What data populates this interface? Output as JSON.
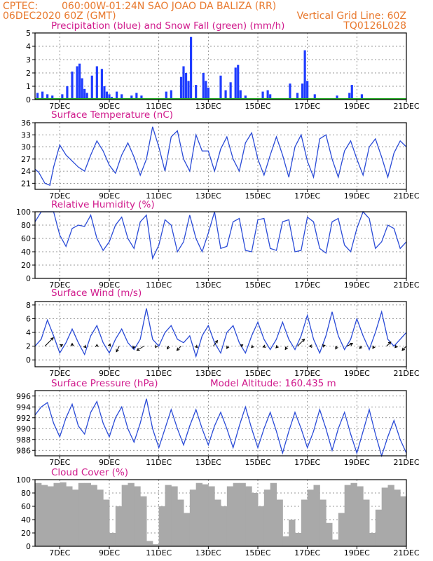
{
  "header": {
    "center": "CPTEC:",
    "location": "060:00W-01:24N  SAO JOAO DA BALIZA (RR)",
    "run": "06DEC2020 60Z (GMT)",
    "grid_note": "Vertical Grid Line: 60Z",
    "model": "TQ0126L028"
  },
  "x_axis": {
    "ticks": [
      "7DEC",
      "9DEC",
      "11DEC",
      "13DEC",
      "15DEC",
      "17DEC",
      "19DEC",
      "21DEC"
    ],
    "tick_days": [
      1,
      3,
      5,
      7,
      9,
      11,
      13,
      15
    ],
    "range_days": [
      0,
      15
    ]
  },
  "colors": {
    "precip": "#1f3cff",
    "snow": "#22aa22",
    "line": "#2a4bd7",
    "cloud": "#a9a9a9",
    "title": "#d01a8c",
    "header": "#e8792e"
  },
  "chart_data": [
    {
      "type": "bar",
      "title": "Precipitation (blue) and Snow Fall (green) (mm/h)",
      "ylim": [
        0,
        5
      ],
      "yticks": [
        "0",
        "1",
        "2",
        "3",
        "4",
        "5"
      ],
      "x_days": [
        0.1,
        0.3,
        0.5,
        0.7,
        1.1,
        1.3,
        1.5,
        1.7,
        1.8,
        1.9,
        2.0,
        2.1,
        2.3,
        2.5,
        2.7,
        2.8,
        2.9,
        3.0,
        3.1,
        3.3,
        3.5,
        3.9,
        4.1,
        4.3,
        5.3,
        5.5,
        5.9,
        6.0,
        6.1,
        6.2,
        6.3,
        6.5,
        6.8,
        6.9,
        7.0,
        7.5,
        7.7,
        7.9,
        8.1,
        8.2,
        8.3,
        8.5,
        9.2,
        9.4,
        9.5,
        10.3,
        10.6,
        10.8,
        10.9,
        11.0,
        11.3,
        12.2,
        12.7,
        12.8,
        13.2
      ],
      "values": [
        0.5,
        0.6,
        0.4,
        0.3,
        0.4,
        1.0,
        2.1,
        2.5,
        2.7,
        1.6,
        0.8,
        0.5,
        1.8,
        2.5,
        2.3,
        1.0,
        0.6,
        0.4,
        0.2,
        0.6,
        0.4,
        0.3,
        0.5,
        0.3,
        0.6,
        0.7,
        1.7,
        2.5,
        2.0,
        1.4,
        4.7,
        1.1,
        2.0,
        1.4,
        0.9,
        1.8,
        0.7,
        1.3,
        2.4,
        2.6,
        0.7,
        0.3,
        0.6,
        0.7,
        0.4,
        1.2,
        0.5,
        1.2,
        3.7,
        1.4,
        0.4,
        0.3,
        0.5,
        1.1,
        0.4
      ],
      "snow_values": [
        0,
        0,
        0,
        0,
        0,
        0,
        0,
        0,
        0,
        0,
        0,
        0,
        0,
        0,
        0,
        0,
        0,
        0,
        0,
        0,
        0,
        0,
        0,
        0,
        0,
        0,
        0,
        0,
        0,
        0,
        0,
        0,
        0,
        0,
        0,
        0,
        0,
        0,
        0,
        0,
        0,
        0,
        0,
        0,
        0,
        0,
        0,
        0,
        0,
        0,
        0,
        0,
        0,
        0,
        0
      ]
    },
    {
      "type": "line",
      "title": "Surface Temperature (nC)",
      "ylim": [
        19.5,
        36
      ],
      "yticks": [
        "21",
        "24",
        "27",
        "30",
        "33",
        "36"
      ],
      "ytick_values": [
        21,
        24,
        27,
        30,
        33,
        36
      ],
      "x_days": [
        0.0,
        0.15,
        0.4,
        0.6,
        0.75,
        1.0,
        1.25,
        1.5,
        1.75,
        2.0,
        2.25,
        2.5,
        2.75,
        3.0,
        3.25,
        3.5,
        3.75,
        4.0,
        4.25,
        4.5,
        4.75,
        5.0,
        5.25,
        5.5,
        5.75,
        6.0,
        6.25,
        6.5,
        6.75,
        7.0,
        7.25,
        7.5,
        7.75,
        8.0,
        8.25,
        8.5,
        8.75,
        9.0,
        9.25,
        9.5,
        9.75,
        10.0,
        10.25,
        10.5,
        10.75,
        11.0,
        11.25,
        11.5,
        11.75,
        12.0,
        12.25,
        12.5,
        12.75,
        13.0,
        13.25,
        13.5,
        13.75,
        14.0,
        14.25,
        14.5,
        14.75,
        15.0
      ],
      "values": [
        24.5,
        23.7,
        21.0,
        20.5,
        25.0,
        30.5,
        28.0,
        26.5,
        25.0,
        24.0,
        28.0,
        31.5,
        29.0,
        25.5,
        23.5,
        28.0,
        31.0,
        27.5,
        23.0,
        27.0,
        35.0,
        30.0,
        24.0,
        32.5,
        34.0,
        27.0,
        24.0,
        33.0,
        29.0,
        29.0,
        24.0,
        29.5,
        32.5,
        27.0,
        24.0,
        31.0,
        33.5,
        27.0,
        23.0,
        28.0,
        32.5,
        28.0,
        22.5,
        30.0,
        33.0,
        26.5,
        22.5,
        32.0,
        33.0,
        27.0,
        22.5,
        29.0,
        31.5,
        27.0,
        23.0,
        30.0,
        32.0,
        27.5,
        22.5,
        28.5,
        31.5,
        30.0
      ]
    },
    {
      "type": "line",
      "title": "Relative Humidity (%)",
      "ylim": [
        0,
        100
      ],
      "yticks": [
        "0",
        "20",
        "40",
        "60",
        "80",
        "100"
      ],
      "ytick_values": [
        0,
        20,
        40,
        60,
        80,
        100
      ],
      "x_days": [
        0.0,
        0.25,
        0.5,
        0.75,
        1.0,
        1.25,
        1.5,
        1.75,
        2.0,
        2.25,
        2.5,
        2.75,
        3.0,
        3.25,
        3.5,
        3.75,
        4.0,
        4.25,
        4.5,
        4.75,
        5.0,
        5.25,
        5.5,
        5.75,
        6.0,
        6.25,
        6.5,
        6.75,
        7.0,
        7.25,
        7.5,
        7.75,
        8.0,
        8.25,
        8.5,
        8.75,
        9.0,
        9.25,
        9.5,
        9.75,
        10.0,
        10.25,
        10.5,
        10.75,
        11.0,
        11.25,
        11.5,
        11.75,
        12.0,
        12.25,
        12.5,
        12.75,
        13.0,
        13.25,
        13.5,
        13.75,
        14.0,
        14.25,
        14.5,
        14.75,
        15.0
      ],
      "values": [
        85,
        100,
        100,
        100,
        65,
        48,
        75,
        80,
        78,
        95,
        60,
        42,
        55,
        80,
        92,
        60,
        45,
        85,
        95,
        30,
        50,
        88,
        80,
        40,
        55,
        95,
        60,
        40,
        68,
        100,
        45,
        48,
        85,
        90,
        42,
        40,
        88,
        90,
        45,
        42,
        85,
        88,
        40,
        42,
        92,
        85,
        45,
        38,
        85,
        90,
        50,
        40,
        75,
        100,
        90,
        45,
        55,
        80,
        75,
        45,
        55
      ]
    },
    {
      "type": "line",
      "title": "Surface Wind (m/s)",
      "ylim": [
        -1,
        8.5
      ],
      "yticks": [
        "0",
        "2",
        "4",
        "6",
        "8"
      ],
      "ytick_values": [
        0,
        2,
        4,
        6,
        8
      ],
      "x_days": [
        0.0,
        0.25,
        0.5,
        0.75,
        1.0,
        1.25,
        1.5,
        1.75,
        2.0,
        2.25,
        2.5,
        2.75,
        3.0,
        3.25,
        3.5,
        3.75,
        4.0,
        4.25,
        4.5,
        4.75,
        5.0,
        5.25,
        5.5,
        5.75,
        6.0,
        6.25,
        6.5,
        6.75,
        7.0,
        7.25,
        7.5,
        7.75,
        8.0,
        8.25,
        8.5,
        8.75,
        9.0,
        9.25,
        9.5,
        9.75,
        10.0,
        10.25,
        10.5,
        10.75,
        11.0,
        11.25,
        11.5,
        11.75,
        12.0,
        12.25,
        12.5,
        12.75,
        13.0,
        13.25,
        13.5,
        13.75,
        14.0,
        14.25,
        14.5,
        14.75,
        15.0
      ],
      "values": [
        2.0,
        3.0,
        5.8,
        3.5,
        1.0,
        2.5,
        4.5,
        2.5,
        0.8,
        3.5,
        5.0,
        2.5,
        1.0,
        3.0,
        4.5,
        2.5,
        1.5,
        3.0,
        7.5,
        3.0,
        2.0,
        4.0,
        5.0,
        3.0,
        2.5,
        3.5,
        0.5,
        3.5,
        5.0,
        2.5,
        1.0,
        4.0,
        5.0,
        2.5,
        1.0,
        3.5,
        5.5,
        3.0,
        1.5,
        3.0,
        5.5,
        3.0,
        1.5,
        3.5,
        6.5,
        3.0,
        1.0,
        3.5,
        7.0,
        3.5,
        1.5,
        3.0,
        6.0,
        3.5,
        1.5,
        4.0,
        7.0,
        3.0,
        2.0,
        3.0,
        4.0
      ],
      "arrows": [
        {
          "day": 0.4,
          "u": 3,
          "v": 3
        },
        {
          "day": 1.0,
          "u": 1,
          "v": 0.5
        },
        {
          "day": 1.5,
          "u": 0,
          "v": 1
        },
        {
          "day": 2.0,
          "u": 0.5,
          "v": -0.5
        },
        {
          "day": 2.5,
          "u": 0,
          "v": 0.6
        },
        {
          "day": 3.0,
          "u": 0.3,
          "v": 0.8
        },
        {
          "day": 3.4,
          "u": -1,
          "v": -2
        },
        {
          "day": 4.0,
          "u": -0.3,
          "v": -0.8
        },
        {
          "day": 4.4,
          "u": -2.5,
          "v": -1.5
        },
        {
          "day": 4.9,
          "u": -0.3,
          "v": -0.5
        },
        {
          "day": 5.4,
          "u": -0.5,
          "v": -1
        },
        {
          "day": 5.9,
          "u": -1.5,
          "v": -1.5
        },
        {
          "day": 6.5,
          "u": 0.5,
          "v": -0.5
        },
        {
          "day": 7.2,
          "u": 1.5,
          "v": 2.0
        },
        {
          "day": 7.8,
          "u": -0.5,
          "v": -0.8
        },
        {
          "day": 8.3,
          "u": 0.8,
          "v": 0.5
        },
        {
          "day": 8.8,
          "u": -0.5,
          "v": -0.5
        },
        {
          "day": 9.3,
          "u": -0.8,
          "v": -0.3
        },
        {
          "day": 9.8,
          "u": -0.6,
          "v": -0.6
        },
        {
          "day": 10.2,
          "u": -0.8,
          "v": -1.2
        },
        {
          "day": 10.6,
          "u": 2.5,
          "v": 2.5
        },
        {
          "day": 11.2,
          "u": -1,
          "v": 0
        },
        {
          "day": 11.6,
          "u": 1.0,
          "v": 0.3
        },
        {
          "day": 12.2,
          "u": -0.5,
          "v": -1
        },
        {
          "day": 12.6,
          "u": 2.0,
          "v": 1.0
        },
        {
          "day": 13.2,
          "u": -0.8,
          "v": -0.8
        },
        {
          "day": 13.7,
          "u": -0.5,
          "v": -0.8
        },
        {
          "day": 14.2,
          "u": 1.5,
          "v": 1.5
        },
        {
          "day": 14.6,
          "u": -0.5,
          "v": -0.5
        },
        {
          "day": 15.0,
          "u": -1.5,
          "v": -1.5
        }
      ]
    },
    {
      "type": "line",
      "title": "Surface Pressure (hPa)",
      "subtitle": "Model Altitude: 160.435 m",
      "ylim": [
        985,
        997
      ],
      "yticks": [
        "986",
        "988",
        "990",
        "992",
        "994",
        "996"
      ],
      "ytick_values": [
        986,
        988,
        990,
        992,
        994,
        996
      ],
      "x_days": [
        0.0,
        0.25,
        0.5,
        0.75,
        1.0,
        1.25,
        1.5,
        1.75,
        2.0,
        2.25,
        2.5,
        2.75,
        3.0,
        3.25,
        3.5,
        3.75,
        4.0,
        4.25,
        4.5,
        4.75,
        5.0,
        5.25,
        5.5,
        5.75,
        6.0,
        6.25,
        6.5,
        6.75,
        7.0,
        7.25,
        7.5,
        7.75,
        8.0,
        8.25,
        8.5,
        8.75,
        9.0,
        9.25,
        9.5,
        9.75,
        10.0,
        10.25,
        10.5,
        10.75,
        11.0,
        11.25,
        11.5,
        11.75,
        12.0,
        12.25,
        12.5,
        12.75,
        13.0,
        13.25,
        13.5,
        13.75,
        14.0,
        14.25,
        14.5,
        14.75,
        15.0
      ],
      "values": [
        992.5,
        994.0,
        994.8,
        991.0,
        988.5,
        992.0,
        994.5,
        990.5,
        989.0,
        993.0,
        995.0,
        991.0,
        988.5,
        992.0,
        994.0,
        990.0,
        987.5,
        991.0,
        995.5,
        990.0,
        986.5,
        990.0,
        993.5,
        990.0,
        987.0,
        990.5,
        993.5,
        990.0,
        987.0,
        990.5,
        993.0,
        990.0,
        986.5,
        990.5,
        994.0,
        990.0,
        986.5,
        990.0,
        993.0,
        989.5,
        985.5,
        989.5,
        993.0,
        990.0,
        986.5,
        989.5,
        993.5,
        990.0,
        986.0,
        990.0,
        993.0,
        989.0,
        985.5,
        989.5,
        993.5,
        989.0,
        985.0,
        988.5,
        991.5,
        988.0,
        985.5
      ]
    },
    {
      "type": "bar",
      "title": "Cloud Cover (%)",
      "ylim": [
        0,
        100
      ],
      "yticks": [
        "0",
        "20",
        "40",
        "60",
        "80",
        "100"
      ],
      "ytick_values": [
        0,
        20,
        40,
        60,
        80,
        100
      ],
      "x_days": [
        0.0,
        0.25,
        0.5,
        0.75,
        1.0,
        1.25,
        1.5,
        1.75,
        2.0,
        2.25,
        2.5,
        2.75,
        3.0,
        3.25,
        3.5,
        3.75,
        4.0,
        4.25,
        4.5,
        4.75,
        5.0,
        5.25,
        5.5,
        5.75,
        6.0,
        6.25,
        6.5,
        6.75,
        7.0,
        7.25,
        7.5,
        7.75,
        8.0,
        8.25,
        8.5,
        8.75,
        9.0,
        9.25,
        9.5,
        9.75,
        10.0,
        10.25,
        10.5,
        10.75,
        11.0,
        11.25,
        11.5,
        11.75,
        12.0,
        12.25,
        12.5,
        12.75,
        13.0,
        13.25,
        13.5,
        13.75,
        14.0,
        14.25,
        14.5,
        14.75
      ],
      "values": [
        95,
        92,
        90,
        95,
        96,
        90,
        85,
        95,
        95,
        92,
        85,
        70,
        20,
        60,
        92,
        95,
        90,
        75,
        8,
        3,
        60,
        92,
        90,
        70,
        50,
        85,
        95,
        93,
        90,
        70,
        60,
        90,
        95,
        95,
        90,
        80,
        60,
        85,
        95,
        70,
        15,
        40,
        20,
        70,
        85,
        92,
        70,
        35,
        10,
        50,
        92,
        95,
        90,
        70,
        20,
        55,
        88,
        92,
        85,
        75
      ]
    }
  ]
}
